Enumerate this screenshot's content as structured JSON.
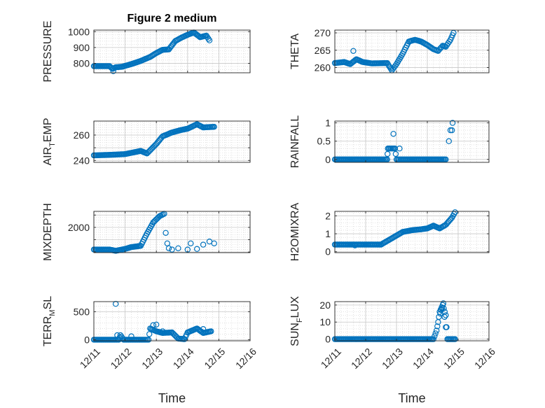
{
  "chart_data": [
    {
      "type": "scatter",
      "title": "Figure 2 medium",
      "ylabel": "PRESSURE",
      "xlabel": "",
      "ylim": [
        740,
        1010
      ],
      "yticks": [
        800,
        900,
        1000
      ],
      "xlim": [
        0,
        5
      ],
      "xticks": [
        0,
        1,
        2,
        3,
        4,
        5
      ],
      "xticklabels": [
        "12/11",
        "12/12",
        "12/13",
        "12/14",
        "12/15",
        "12/16"
      ],
      "grid": true,
      "anchors": [
        [
          0,
          782
        ],
        [
          0.5,
          782
        ],
        [
          0.6,
          765
        ],
        [
          0.7,
          775
        ],
        [
          0.9,
          778
        ],
        [
          1.2,
          795
        ],
        [
          1.5,
          815
        ],
        [
          1.8,
          840
        ],
        [
          2.0,
          865
        ],
        [
          2.2,
          885
        ],
        [
          2.4,
          888
        ],
        [
          2.6,
          940
        ],
        [
          2.8,
          962
        ],
        [
          3.0,
          980
        ],
        [
          3.2,
          995
        ],
        [
          3.4,
          965
        ],
        [
          3.6,
          975
        ],
        [
          3.7,
          945
        ]
      ],
      "outliers": [
        [
          0.62,
          750
        ]
      ]
    },
    {
      "type": "scatter",
      "title": "",
      "ylabel": "THETA",
      "xlabel": "",
      "ylim": [
        258.5,
        270.8
      ],
      "yticks": [
        260,
        265,
        270
      ],
      "xlim": [
        0,
        5
      ],
      "xticks": [
        0,
        1,
        2,
        3,
        4,
        5
      ],
      "xticklabels": [
        "12/11",
        "12/12",
        "12/13",
        "12/14",
        "12/15",
        "12/16"
      ],
      "grid": true,
      "anchors": [
        [
          0,
          261.3
        ],
        [
          0.3,
          261.6
        ],
        [
          0.5,
          261.0
        ],
        [
          0.7,
          262.4
        ],
        [
          0.9,
          261.6
        ],
        [
          1.2,
          261.2
        ],
        [
          1.7,
          261.3
        ],
        [
          1.85,
          259.2
        ],
        [
          2.0,
          261.0
        ],
        [
          2.2,
          264.0
        ],
        [
          2.4,
          267.5
        ],
        [
          2.6,
          268.0
        ],
        [
          2.8,
          267.5
        ],
        [
          3.0,
          266.5
        ],
        [
          3.2,
          265.3
        ],
        [
          3.35,
          264.8
        ],
        [
          3.5,
          266.3
        ],
        [
          3.6,
          266.0
        ],
        [
          3.75,
          268.0
        ],
        [
          3.85,
          270.0
        ]
      ],
      "outliers": [
        [
          0.6,
          264.8
        ]
      ]
    },
    {
      "type": "scatter",
      "title": "",
      "ylabel": "AIR_TEMP",
      "xlabel": "",
      "ylim": [
        238.5,
        271
      ],
      "yticks": [
        240,
        250,
        260
      ],
      "yticklabels": [
        "240",
        "",
        "260"
      ],
      "xlim": [
        0,
        5
      ],
      "xticks": [
        0,
        1,
        2,
        3,
        4,
        5
      ],
      "xticklabels": [
        "12/11",
        "12/12",
        "12/13",
        "12/14",
        "12/15",
        "12/16"
      ],
      "grid": true,
      "anchors": [
        [
          0,
          244
        ],
        [
          0.6,
          244.5
        ],
        [
          1.0,
          245
        ],
        [
          1.3,
          246.5
        ],
        [
          1.5,
          247.5
        ],
        [
          1.7,
          245.5
        ],
        [
          2.0,
          253
        ],
        [
          2.2,
          259
        ],
        [
          2.5,
          262
        ],
        [
          2.8,
          264
        ],
        [
          3.0,
          265
        ],
        [
          3.3,
          268.5
        ],
        [
          3.5,
          266
        ],
        [
          3.85,
          266.5
        ]
      ],
      "outliers": []
    },
    {
      "type": "scatter",
      "title": "",
      "ylabel": "RAINFALL",
      "xlabel": "",
      "ylim": [
        -0.08,
        1.05
      ],
      "yticks": [
        0,
        0.5,
        1
      ],
      "xlim": [
        0,
        5
      ],
      "xticks": [
        0,
        1,
        2,
        3,
        4,
        5
      ],
      "xticklabels": [
        "12/11",
        "12/12",
        "12/13",
        "12/14",
        "12/15",
        "12/16"
      ],
      "grid": true,
      "anchors": [
        [
          0,
          0
        ],
        [
          1.7,
          0
        ],
        [
          1.72,
          0.3
        ],
        [
          1.95,
          0.3
        ],
        [
          2.0,
          0
        ],
        [
          3.6,
          0
        ]
      ],
      "outliers": [
        [
          1.9,
          0.7
        ],
        [
          2.1,
          0.3
        ],
        [
          3.7,
          0.5
        ],
        [
          3.75,
          0.8
        ],
        [
          3.8,
          0.8
        ],
        [
          3.82,
          1.0
        ]
      ]
    },
    {
      "type": "scatter",
      "title": "",
      "ylabel": "MIXDEPTH",
      "xlabel": "",
      "ylim": [
        -50,
        3300
      ],
      "yticks": [
        0,
        1000,
        2000,
        3000
      ],
      "yticklabels": [
        "",
        "",
        "2000",
        ""
      ],
      "xlim": [
        0,
        5
      ],
      "xticks": [
        0,
        1,
        2,
        3,
        4,
        5
      ],
      "xticklabels": [
        "12/11",
        "12/12",
        "12/13",
        "12/14",
        "12/15",
        "12/16"
      ],
      "grid": true,
      "anchors": [
        [
          0,
          200
        ],
        [
          0.5,
          200
        ],
        [
          0.7,
          100
        ],
        [
          1.0,
          250
        ],
        [
          1.2,
          400
        ],
        [
          1.5,
          500
        ],
        [
          1.7,
          1500
        ],
        [
          1.9,
          2400
        ],
        [
          2.1,
          2900
        ],
        [
          2.25,
          3100
        ]
      ],
      "outliers": [
        [
          2.3,
          1550
        ],
        [
          2.35,
          700
        ],
        [
          2.4,
          300
        ],
        [
          2.5,
          200
        ],
        [
          2.7,
          300
        ],
        [
          3.0,
          200
        ],
        [
          3.1,
          700
        ],
        [
          3.3,
          250
        ],
        [
          3.5,
          600
        ],
        [
          3.7,
          850
        ],
        [
          3.85,
          700
        ]
      ]
    },
    {
      "type": "scatter",
      "title": "",
      "ylabel": "H2OMIXRA",
      "xlabel": "",
      "ylim": [
        -0.05,
        2.25
      ],
      "yticks": [
        0,
        1,
        2
      ],
      "xlim": [
        0,
        5
      ],
      "xticks": [
        0,
        1,
        2,
        3,
        4,
        5
      ],
      "xticklabels": [
        "12/11",
        "12/12",
        "12/13",
        "12/14",
        "12/15",
        "12/16"
      ],
      "grid": true,
      "anchors": [
        [
          0,
          0.4
        ],
        [
          1.5,
          0.4
        ],
        [
          1.7,
          0.6
        ],
        [
          2.0,
          0.9
        ],
        [
          2.2,
          1.1
        ],
        [
          2.5,
          1.2
        ],
        [
          2.8,
          1.25
        ],
        [
          3.0,
          1.3
        ],
        [
          3.2,
          1.45
        ],
        [
          3.4,
          1.3
        ],
        [
          3.6,
          1.5
        ],
        [
          3.7,
          1.7
        ],
        [
          3.8,
          1.9
        ],
        [
          3.9,
          2.2
        ]
      ],
      "outliers": [
        [
          0.65,
          0.35
        ]
      ]
    },
    {
      "type": "scatter",
      "title": "",
      "ylabel": "TERR_MSL",
      "xlabel": "Time",
      "ylim": [
        -20,
        680
      ],
      "yticks": [
        0,
        500
      ],
      "xlim": [
        0,
        5
      ],
      "xticks": [
        0,
        1,
        2,
        3,
        4,
        5
      ],
      "xticklabels": [
        "12/11",
        "12/12",
        "12/13",
        "12/14",
        "12/15",
        "12/16"
      ],
      "grid": true,
      "anchors": [
        [
          0,
          0
        ],
        [
          0.8,
          0
        ],
        [
          0.85,
          80
        ],
        [
          0.95,
          0
        ],
        [
          1.6,
          0
        ],
        [
          1.75,
          0
        ],
        [
          1.8,
          200
        ],
        [
          2.0,
          150
        ],
        [
          2.2,
          120
        ],
        [
          2.5,
          130
        ],
        [
          2.7,
          20
        ],
        [
          2.9,
          10
        ],
        [
          3.0,
          130
        ],
        [
          3.3,
          200
        ],
        [
          3.5,
          120
        ],
        [
          3.75,
          150
        ]
      ],
      "outliers": [
        [
          0.7,
          640
        ],
        [
          0.75,
          80
        ],
        [
          1.2,
          60
        ],
        [
          1.9,
          260
        ],
        [
          2.0,
          270
        ],
        [
          2.2,
          150
        ],
        [
          3.5,
          190
        ]
      ]
    },
    {
      "type": "scatter",
      "title": "",
      "ylabel": "SUN_FLUX",
      "xlabel": "Time",
      "ylim": [
        -1,
        22
      ],
      "yticks": [
        0,
        10,
        20
      ],
      "xlim": [
        0,
        5
      ],
      "xticks": [
        0,
        1,
        2,
        3,
        4,
        5
      ],
      "xticklabels": [
        "12/11",
        "12/12",
        "12/13",
        "12/14",
        "12/15",
        "12/16"
      ],
      "grid": true,
      "anchors": [
        [
          0,
          0
        ],
        [
          3.2,
          0
        ],
        [
          3.3,
          5
        ],
        [
          3.35,
          10
        ],
        [
          3.4,
          16
        ],
        [
          3.5,
          20
        ],
        [
          3.6,
          14
        ],
        [
          3.65,
          0
        ],
        [
          3.9,
          0
        ]
      ],
      "outliers": [
        [
          3.42,
          15
        ],
        [
          3.45,
          17
        ],
        [
          3.48,
          18
        ],
        [
          3.52,
          21
        ],
        [
          3.56,
          13
        ],
        [
          3.6,
          7
        ]
      ]
    }
  ]
}
